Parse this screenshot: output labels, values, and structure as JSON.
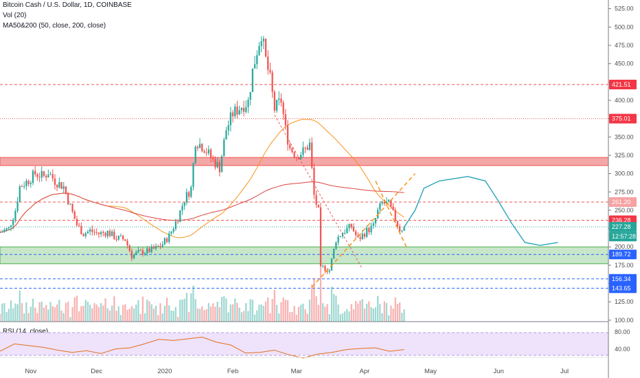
{
  "header": {
    "title": "Bitcoin Cash / U.S. Dollar, 1D, COINBASE",
    "volume": "Vol (20)",
    "ma": "MA50&200 (50, close, 200, close)",
    "rsi": "RSI (14, close)"
  },
  "colors": {
    "up": "#26a69a",
    "down": "#ef5350",
    "ma50": "#f7931a",
    "ma200": "#d9443f",
    "resistance_zone": "#f4a7a7",
    "support_zone": "#c8e6c9",
    "projection": "#29a3b8",
    "rsi_line": "#e0701a",
    "rsi_band": "#efe2fb"
  },
  "chart_data": {
    "type": "candlestick",
    "symbol": "BCHUSD",
    "interval": "1D",
    "exchange": "COINBASE",
    "y_axis": {
      "ticks": [
        100,
        125,
        150,
        175,
        200,
        225,
        250,
        275,
        300,
        325,
        350,
        375,
        400,
        425,
        450,
        475,
        500,
        525
      ],
      "tick_labels": [
        "100.00",
        "125.00",
        "150.00",
        "175.00",
        "200.00",
        "225.00",
        "250.00",
        "275.00",
        "300.00",
        "325.00",
        "350.00",
        "375.00",
        "400.00",
        "425.00",
        "450.00",
        "475.00",
        "500.00",
        "525.00"
      ],
      "range": [
        98,
        535
      ]
    },
    "x_axis": {
      "labels": [
        "Nov",
        "Dec",
        "2020",
        "Feb",
        "Mar",
        "Apr",
        "May",
        "Jun",
        "Jul"
      ],
      "label_dates": [
        "2019-11-01",
        "2019-12-01",
        "2020-01-01",
        "2020-02-01",
        "2020-03-01",
        "2020-04-01",
        "2020-05-01",
        "2020-06-01",
        "2020-07-01"
      ],
      "range": [
        "2019-10-18",
        "2020-07-21"
      ]
    },
    "candles_close_path": [
      [
        "2019-10-18",
        220
      ],
      [
        "2019-10-22",
        225
      ],
      [
        "2019-10-25",
        250
      ],
      [
        "2019-10-27",
        282
      ],
      [
        "2019-10-31",
        291
      ],
      [
        "2019-11-03",
        300
      ],
      [
        "2019-11-07",
        296
      ],
      [
        "2019-11-09",
        302
      ],
      [
        "2019-11-12",
        290
      ],
      [
        "2019-11-16",
        282
      ],
      [
        "2019-11-19",
        255
      ],
      [
        "2019-11-22",
        230
      ],
      [
        "2019-11-25",
        218
      ],
      [
        "2019-11-28",
        222
      ],
      [
        "2019-12-02",
        218
      ],
      [
        "2019-12-06",
        220
      ],
      [
        "2019-12-10",
        212
      ],
      [
        "2019-12-14",
        210
      ],
      [
        "2019-12-17",
        188
      ],
      [
        "2019-12-20",
        192
      ],
      [
        "2019-12-24",
        194
      ],
      [
        "2019-12-28",
        198
      ],
      [
        "2019-12-31",
        204
      ],
      [
        "2020-01-03",
        215
      ],
      [
        "2020-01-07",
        240
      ],
      [
        "2020-01-10",
        265
      ],
      [
        "2020-01-13",
        280
      ],
      [
        "2020-01-15",
        345
      ],
      [
        "2020-01-19",
        335
      ],
      [
        "2020-01-23",
        318
      ],
      [
        "2020-01-26",
        308
      ],
      [
        "2020-01-29",
        360
      ],
      [
        "2020-02-01",
        382
      ],
      [
        "2020-02-05",
        392
      ],
      [
        "2020-02-08",
        398
      ],
      [
        "2020-02-10",
        440
      ],
      [
        "2020-02-12",
        468
      ],
      [
        "2020-02-14",
        492
      ],
      [
        "2020-02-16",
        455
      ],
      [
        "2020-02-18",
        428
      ],
      [
        "2020-02-20",
        388
      ],
      [
        "2020-02-23",
        400
      ],
      [
        "2020-02-25",
        360
      ],
      [
        "2020-02-27",
        335
      ],
      [
        "2020-03-01",
        325
      ],
      [
        "2020-03-04",
        330
      ],
      [
        "2020-03-07",
        340
      ],
      [
        "2020-03-09",
        270
      ],
      [
        "2020-03-11",
        248
      ],
      [
        "2020-03-12",
        170
      ],
      [
        "2020-03-13",
        172
      ],
      [
        "2020-03-16",
        168
      ],
      [
        "2020-03-19",
        210
      ],
      [
        "2020-03-22",
        220
      ],
      [
        "2020-03-26",
        228
      ],
      [
        "2020-03-29",
        210
      ],
      [
        "2020-04-02",
        222
      ],
      [
        "2020-04-05",
        228
      ],
      [
        "2020-04-07",
        248
      ],
      [
        "2020-04-09",
        260
      ],
      [
        "2020-04-12",
        258
      ],
      [
        "2020-04-15",
        238
      ],
      [
        "2020-04-17",
        224
      ],
      [
        "2020-04-19",
        226
      ]
    ],
    "rsi": {
      "values": [
        42,
        55,
        52,
        49,
        44,
        40,
        43,
        38,
        46,
        48,
        55,
        63,
        61,
        64,
        67,
        58,
        53,
        39,
        40,
        44,
        36,
        30,
        37,
        40,
        45,
        47,
        48,
        42,
        45
      ],
      "ticks": [
        "80.00",
        "40.00"
      ]
    }
  },
  "levels": {
    "r1": "421.51",
    "r2": "375.01",
    "r3": "261.20",
    "r4": "236.28",
    "current": "227.28",
    "countdown": "12:57:28",
    "s1": "189.72",
    "s2": "156.34",
    "s3": "143.65"
  }
}
